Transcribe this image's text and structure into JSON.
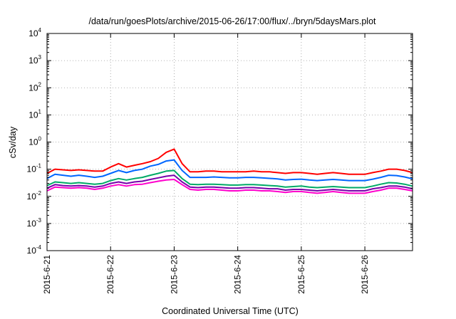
{
  "chart_data": {
    "type": "line",
    "title": "/data/run/goesPlots/archive/2015-06-26/17:00/flux/../bryn/5daysMars.plot",
    "xlabel": "Coordinated Universal Time (UTC)",
    "ylabel": "cSv/day",
    "yscale": "log",
    "ylim": [
      0.0001,
      10000
    ],
    "xlim": [
      "2015-06-21 00:00",
      "2015-06-26 18:00"
    ],
    "grid": true,
    "legend": "none",
    "y_ticks": [
      {
        "base": "10",
        "exp": "-4",
        "value": 0.0001
      },
      {
        "base": "10",
        "exp": "-3",
        "value": 0.001
      },
      {
        "base": "10",
        "exp": "-2",
        "value": 0.01
      },
      {
        "base": "10",
        "exp": "-1",
        "value": 0.1
      },
      {
        "base": "10",
        "exp": "0",
        "value": 1
      },
      {
        "base": "10",
        "exp": "1",
        "value": 10
      },
      {
        "base": "10",
        "exp": "2",
        "value": 100
      },
      {
        "base": "10",
        "exp": "3",
        "value": 1000
      },
      {
        "base": "10",
        "exp": "4",
        "value": 10000
      }
    ],
    "x_ticks": [
      {
        "label": "2015-6-21",
        "value": "2015-06-21"
      },
      {
        "label": "2015-6-22",
        "value": "2015-06-22"
      },
      {
        "label": "2015-6-23",
        "value": "2015-06-23"
      },
      {
        "label": "2015-6-24",
        "value": "2015-06-24"
      },
      {
        "label": "2015-6-25",
        "value": "2015-06-25"
      },
      {
        "label": "2015-6-26",
        "value": "2015-06-26"
      }
    ],
    "x": [
      "2015-06-21 00:00",
      "2015-06-21 03:00",
      "2015-06-21 06:00",
      "2015-06-21 09:00",
      "2015-06-21 12:00",
      "2015-06-21 15:00",
      "2015-06-21 18:00",
      "2015-06-21 21:00",
      "2015-06-22 00:00",
      "2015-06-22 03:00",
      "2015-06-22 06:00",
      "2015-06-22 09:00",
      "2015-06-22 12:00",
      "2015-06-22 15:00",
      "2015-06-22 18:00",
      "2015-06-22 21:00",
      "2015-06-23 00:00",
      "2015-06-23 03:00",
      "2015-06-23 06:00",
      "2015-06-23 09:00",
      "2015-06-23 12:00",
      "2015-06-23 15:00",
      "2015-06-23 18:00",
      "2015-06-23 21:00",
      "2015-06-24 00:00",
      "2015-06-24 03:00",
      "2015-06-24 06:00",
      "2015-06-24 09:00",
      "2015-06-24 12:00",
      "2015-06-24 15:00",
      "2015-06-24 18:00",
      "2015-06-24 21:00",
      "2015-06-25 00:00",
      "2015-06-25 03:00",
      "2015-06-25 06:00",
      "2015-06-25 09:00",
      "2015-06-25 12:00",
      "2015-06-25 15:00",
      "2015-06-25 18:00",
      "2015-06-25 21:00",
      "2015-06-26 00:00",
      "2015-06-26 03:00",
      "2015-06-26 06:00",
      "2015-06-26 09:00",
      "2015-06-26 12:00",
      "2015-06-26 15:00",
      "2015-06-26 18:00"
    ],
    "series": [
      {
        "color": "#ff0000",
        "values": [
          0.07,
          0.1,
          0.095,
          0.09,
          0.095,
          0.09,
          0.085,
          0.085,
          0.12,
          0.16,
          0.12,
          0.14,
          0.16,
          0.19,
          0.25,
          0.42,
          0.55,
          0.16,
          0.08,
          0.08,
          0.085,
          0.085,
          0.08,
          0.08,
          0.08,
          0.08,
          0.085,
          0.08,
          0.08,
          0.075,
          0.07,
          0.075,
          0.075,
          0.07,
          0.065,
          0.07,
          0.075,
          0.07,
          0.065,
          0.065,
          0.065,
          0.075,
          0.085,
          0.1,
          0.1,
          0.09,
          0.075
        ]
      },
      {
        "color": "#0066ff",
        "values": [
          0.045,
          0.065,
          0.06,
          0.055,
          0.06,
          0.055,
          0.05,
          0.055,
          0.07,
          0.09,
          0.075,
          0.09,
          0.1,
          0.13,
          0.15,
          0.2,
          0.22,
          0.09,
          0.05,
          0.05,
          0.05,
          0.052,
          0.05,
          0.048,
          0.048,
          0.05,
          0.05,
          0.048,
          0.046,
          0.044,
          0.04,
          0.042,
          0.043,
          0.04,
          0.038,
          0.04,
          0.042,
          0.04,
          0.038,
          0.038,
          0.038,
          0.043,
          0.05,
          0.06,
          0.058,
          0.052,
          0.044
        ]
      },
      {
        "color": "#00aa66",
        "values": [
          0.025,
          0.034,
          0.032,
          0.03,
          0.032,
          0.03,
          0.028,
          0.03,
          0.038,
          0.045,
          0.04,
          0.045,
          0.05,
          0.06,
          0.07,
          0.085,
          0.09,
          0.045,
          0.028,
          0.027,
          0.028,
          0.028,
          0.027,
          0.026,
          0.026,
          0.027,
          0.027,
          0.026,
          0.025,
          0.024,
          0.022,
          0.023,
          0.024,
          0.022,
          0.021,
          0.022,
          0.023,
          0.022,
          0.021,
          0.021,
          0.021,
          0.024,
          0.028,
          0.032,
          0.031,
          0.028,
          0.024
        ]
      },
      {
        "color": "#7700aa",
        "values": [
          0.02,
          0.027,
          0.025,
          0.024,
          0.025,
          0.024,
          0.022,
          0.024,
          0.03,
          0.034,
          0.03,
          0.034,
          0.036,
          0.042,
          0.048,
          0.055,
          0.06,
          0.034,
          0.022,
          0.021,
          0.022,
          0.022,
          0.021,
          0.02,
          0.02,
          0.021,
          0.021,
          0.02,
          0.019,
          0.019,
          0.017,
          0.018,
          0.018,
          0.017,
          0.016,
          0.017,
          0.018,
          0.017,
          0.016,
          0.016,
          0.016,
          0.019,
          0.021,
          0.024,
          0.024,
          0.022,
          0.019
        ]
      },
      {
        "color": "#ff00cc",
        "values": [
          0.016,
          0.022,
          0.021,
          0.02,
          0.021,
          0.02,
          0.018,
          0.02,
          0.024,
          0.027,
          0.024,
          0.027,
          0.028,
          0.032,
          0.036,
          0.04,
          0.042,
          0.027,
          0.018,
          0.017,
          0.018,
          0.018,
          0.017,
          0.016,
          0.016,
          0.017,
          0.017,
          0.016,
          0.016,
          0.015,
          0.014,
          0.015,
          0.015,
          0.014,
          0.013,
          0.014,
          0.015,
          0.014,
          0.013,
          0.013,
          0.013,
          0.015,
          0.017,
          0.02,
          0.02,
          0.018,
          0.016
        ]
      }
    ]
  }
}
